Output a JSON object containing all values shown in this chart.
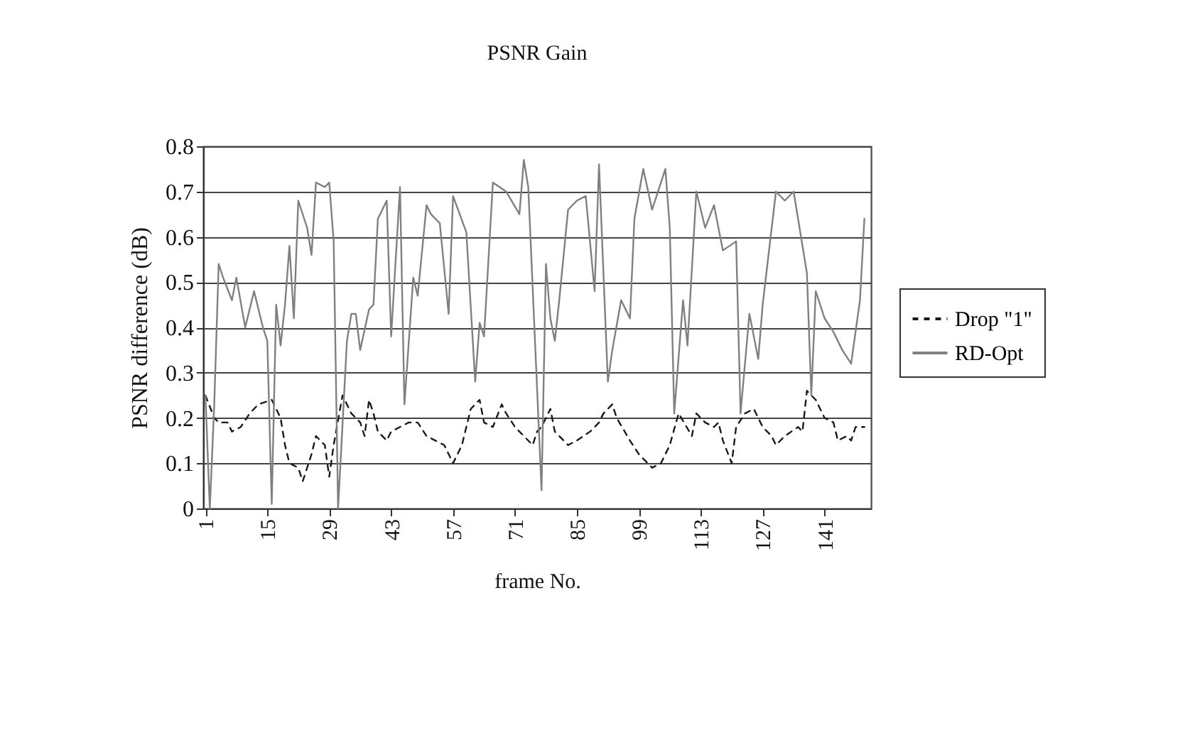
{
  "chart_data": {
    "type": "line",
    "title": "PSNR Gain",
    "xlabel": "frame No.",
    "ylabel": "PSNR difference (dB)",
    "xlim": [
      0.5,
      151.5
    ],
    "xticks": [
      1,
      15,
      29,
      43,
      57,
      71,
      85,
      99,
      113,
      127,
      141
    ],
    "ylim": [
      0,
      0.8
    ],
    "yticks": [
      0,
      0.1,
      0.2,
      0.3,
      0.4,
      0.5,
      0.6,
      0.7,
      0.8
    ],
    "grid": "y",
    "legend": "right",
    "series": [
      {
        "name": "Drop \"1\"",
        "color": "#1a1a1a",
        "line_style": "dashed",
        "x": [
          1,
          3,
          4,
          6,
          7,
          9,
          11,
          13,
          16,
          18,
          19,
          20,
          22,
          23,
          25,
          26,
          28,
          29,
          30,
          32,
          34,
          36,
          37,
          38,
          39,
          40,
          42,
          43,
          45,
          47,
          49,
          51,
          53,
          55,
          57,
          59,
          60,
          61,
          63,
          64,
          66,
          68,
          69,
          71,
          73,
          75,
          76,
          77,
          79,
          80,
          82,
          83,
          85,
          88,
          90,
          91,
          93,
          94,
          97,
          99,
          101,
          102,
          104,
          106,
          108,
          111,
          112,
          114,
          116,
          117,
          118,
          120,
          121,
          123,
          125,
          127,
          129,
          130,
          132,
          135,
          136,
          137,
          139,
          141,
          143,
          144,
          146,
          147,
          148,
          150
        ],
        "values": [
          0.25,
          0.2,
          0.19,
          0.19,
          0.17,
          0.18,
          0.21,
          0.23,
          0.24,
          0.2,
          0.14,
          0.1,
          0.09,
          0.06,
          0.12,
          0.16,
          0.14,
          0.07,
          0.14,
          0.25,
          0.21,
          0.19,
          0.16,
          0.24,
          0.21,
          0.17,
          0.15,
          0.17,
          0.18,
          0.19,
          0.19,
          0.16,
          0.15,
          0.14,
          0.1,
          0.14,
          0.18,
          0.22,
          0.24,
          0.19,
          0.18,
          0.23,
          0.21,
          0.18,
          0.16,
          0.14,
          0.17,
          0.18,
          0.22,
          0.17,
          0.15,
          0.14,
          0.15,
          0.17,
          0.19,
          0.21,
          0.23,
          0.2,
          0.15,
          0.12,
          0.1,
          0.09,
          0.1,
          0.14,
          0.21,
          0.16,
          0.21,
          0.19,
          0.18,
          0.19,
          0.15,
          0.1,
          0.18,
          0.21,
          0.22,
          0.18,
          0.16,
          0.14,
          0.16,
          0.18,
          0.17,
          0.26,
          0.24,
          0.2,
          0.19,
          0.15,
          0.16,
          0.15,
          0.18,
          0.18
        ]
      },
      {
        "name": "RD-Opt",
        "color": "#808080",
        "line_style": "solid",
        "x": [
          1,
          2,
          3,
          4,
          5,
          7,
          8,
          10,
          12,
          14,
          15,
          16,
          17,
          18,
          19,
          20,
          21,
          22,
          24,
          25,
          26,
          28,
          29,
          30,
          31,
          33,
          34,
          35,
          36,
          38,
          39,
          40,
          42,
          43,
          45,
          46,
          48,
          49,
          51,
          52,
          54,
          56,
          57,
          60,
          62,
          63,
          64,
          66,
          69,
          72,
          73,
          74,
          77,
          78,
          79,
          80,
          81,
          83,
          85,
          87,
          89,
          90,
          92,
          93,
          95,
          97,
          98,
          100,
          102,
          103,
          105,
          106,
          107,
          109,
          110,
          112,
          114,
          116,
          118,
          121,
          122,
          124,
          126,
          127,
          130,
          132,
          134,
          137,
          138,
          139,
          141,
          143,
          145,
          147,
          149,
          150
        ],
        "values": [
          0.25,
          0,
          0.23,
          0.54,
          0.51,
          0.46,
          0.51,
          0.4,
          0.48,
          0.4,
          0.37,
          0.01,
          0.45,
          0.36,
          0.45,
          0.58,
          0.42,
          0.68,
          0.62,
          0.56,
          0.72,
          0.71,
          0.72,
          0.59,
          0,
          0.37,
          0.43,
          0.43,
          0.35,
          0.44,
          0.45,
          0.64,
          0.68,
          0.38,
          0.71,
          0.23,
          0.51,
          0.47,
          0.67,
          0.65,
          0.63,
          0.43,
          0.69,
          0.61,
          0.28,
          0.41,
          0.38,
          0.72,
          0.7,
          0.65,
          0.77,
          0.71,
          0.04,
          0.54,
          0.42,
          0.37,
          0.46,
          0.66,
          0.68,
          0.69,
          0.48,
          0.76,
          0.28,
          0.35,
          0.46,
          0.42,
          0.64,
          0.75,
          0.66,
          0.69,
          0.75,
          0.62,
          0.21,
          0.46,
          0.36,
          0.7,
          0.62,
          0.67,
          0.57,
          0.59,
          0.21,
          0.43,
          0.33,
          0.45,
          0.7,
          0.68,
          0.7,
          0.52,
          0.25,
          0.48,
          0.42,
          0.39,
          0.35,
          0.32,
          0.46,
          0.64
        ]
      }
    ]
  }
}
